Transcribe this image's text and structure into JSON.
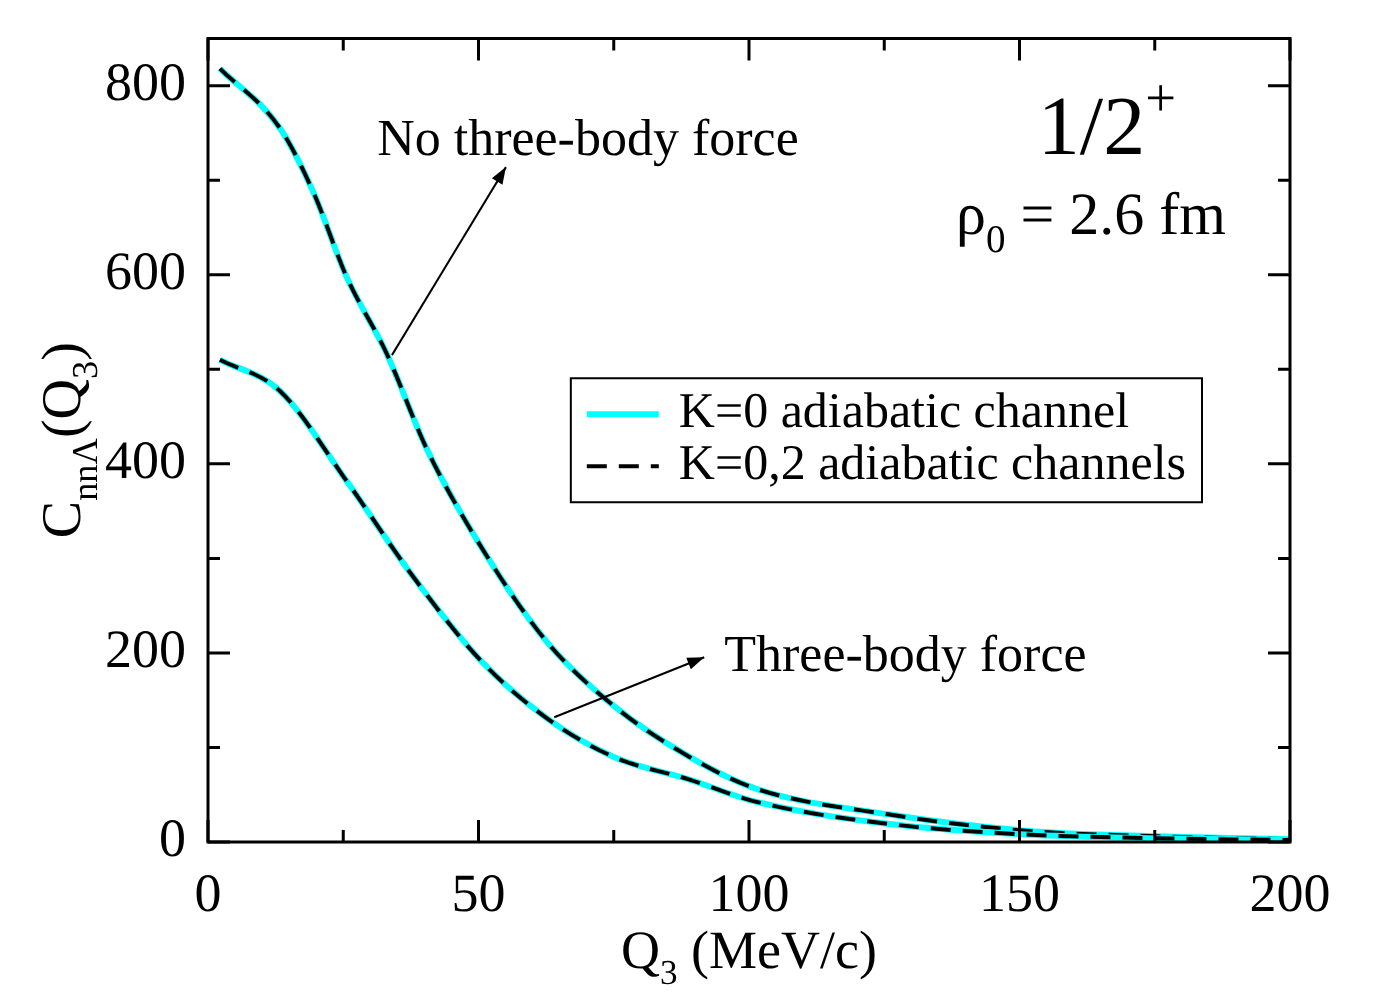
{
  "chart_data": {
    "type": "line",
    "xlabel": "Q$_{3}$ (MeV/c)",
    "ylabel": "C$_{nnΛ}$(Q$_{3}$)",
    "xlim": [
      0,
      200
    ],
    "xticks": [
      0,
      {
        "value": 25,
        "label": null
      },
      50,
      {
        "value": 75,
        "label": null
      },
      100,
      {
        "value": 125,
        "label": null
      },
      150,
      {
        "value": 175,
        "label": null
      },
      200
    ],
    "ylim": [
      0,
      850
    ],
    "yticks": [
      0,
      {
        "value": 100,
        "label": null
      },
      200,
      {
        "value": 300,
        "label": null
      },
      400,
      {
        "value": 500,
        "label": null
      },
      600,
      {
        "value": 700,
        "label": null
      },
      800
    ],
    "grid": false,
    "legend": "right",
    "marker": "none",
    "series": [
      {
        "name": "K=0 adiabatic channel",
        "color": "#00ffff",
        "line_style": "solid",
        "x": [
          2.2,
          13.3,
          19.5,
          25.6,
          33,
          40.5,
          50.4,
          62.6,
          75,
          89,
          101,
          126,
          151,
          175.5,
          200
        ],
        "values": [
          818,
          755,
          687,
          598,
          517,
          415,
          313,
          212,
          144,
          90,
          57,
          29,
          12,
          6,
          3
        ]
      },
      {
        "name": "K=0,2 adiabatic channels",
        "color": "#000000",
        "line_style": "dashed",
        "x": [
          2.2,
          13.3,
          19.5,
          25.6,
          33,
          40.5,
          50.4,
          62.6,
          75,
          89,
          101,
          126,
          151,
          175.5,
          200
        ],
        "values": [
          818,
          755,
          687,
          598,
          517,
          415,
          313,
          212,
          144,
          90,
          57,
          29,
          12,
          6,
          3
        ]
      },
      {
        "color": "#00ffff",
        "line_style": "solid",
        "x": [
          2.2,
          13.3,
          25.6,
          38,
          50.4,
          62.6,
          75,
          89,
          101,
          126,
          151,
          175,
          200
        ],
        "values": [
          510,
          477,
          382,
          280,
          192,
          131,
          90,
          66,
          43,
          19,
          8,
          4,
          2
        ]
      },
      {
        "color": "#000000",
        "line_style": "dashed",
        "x": [
          2.2,
          13.3,
          25.6,
          38,
          50.4,
          62.6,
          75,
          89,
          101,
          126,
          151,
          175,
          200
        ],
        "values": [
          510,
          477,
          382,
          280,
          192,
          131,
          90,
          66,
          43,
          19,
          8,
          4,
          2
        ]
      }
    ],
    "annotations": [
      {
        "text": "No three-body force",
        "x": 34,
        "y": 515
      },
      {
        "text": "Three-body force",
        "x": 64,
        "y": 132
      },
      "1/2$^{+}$",
      "ρ$_{0}$ = 2.6 fm"
    ]
  }
}
